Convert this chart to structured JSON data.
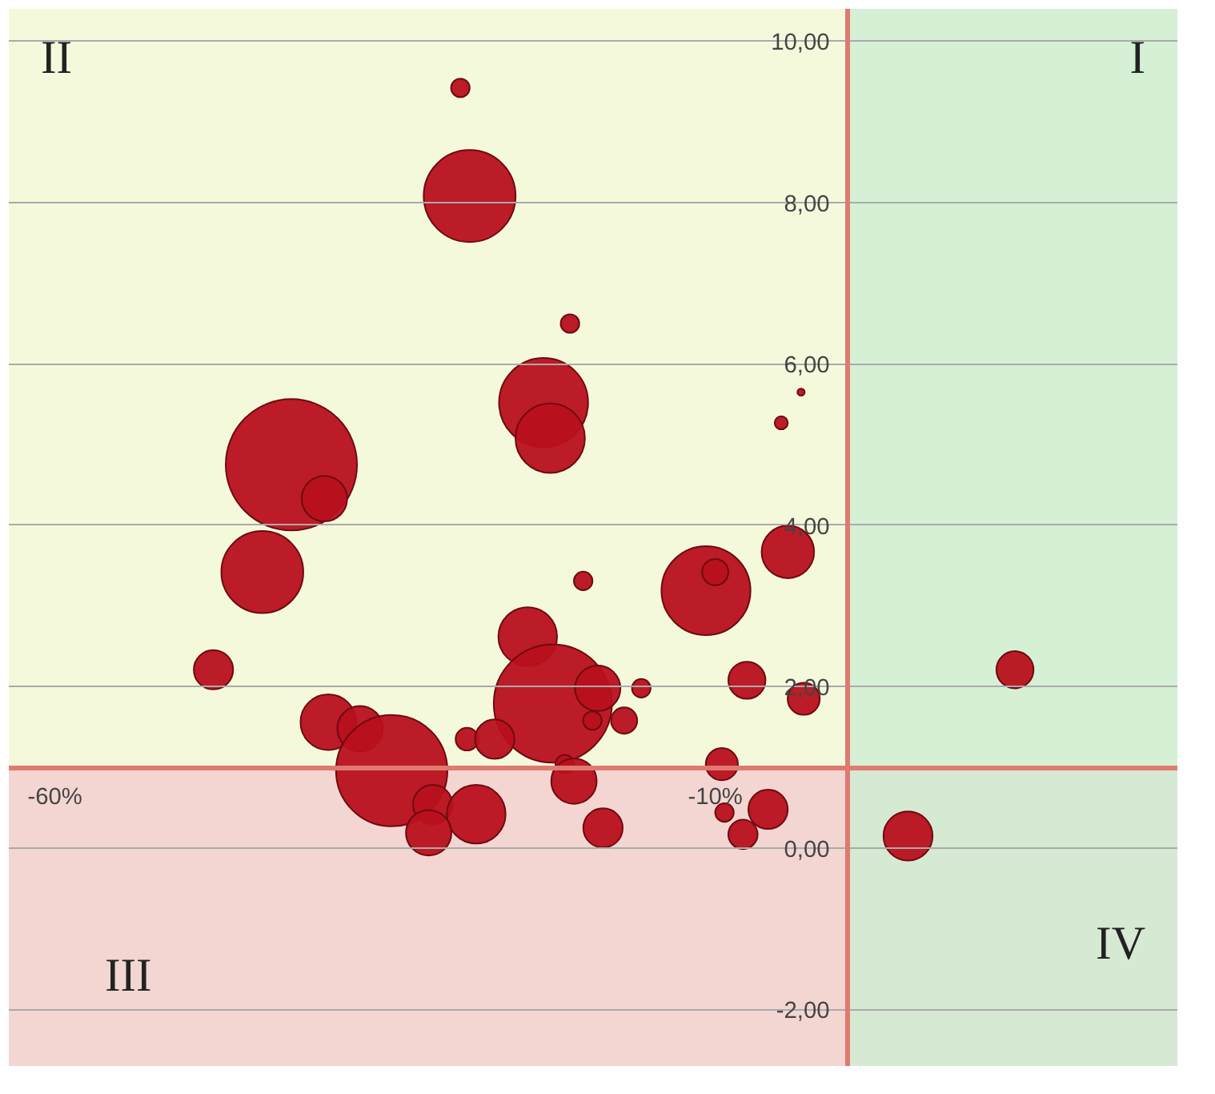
{
  "chart_data": {
    "type": "bubble",
    "color": "#b8101c",
    "grid": "y",
    "marker": "circle",
    "xlim": [
      -63.5,
      25
    ],
    "ylim": [
      -2.7,
      10.4
    ],
    "xticks": [
      {
        "value": -60,
        "label": "-60%"
      },
      {
        "value": -10,
        "label": "-10%"
      }
    ],
    "yticks": [
      {
        "value": -2,
        "label": "-2,00"
      },
      {
        "value": 0,
        "label": "0,00"
      },
      {
        "value": 2,
        "label": "2,00"
      },
      {
        "value": 4,
        "label": "4,00"
      },
      {
        "value": 6,
        "label": "6,00"
      },
      {
        "value": 8,
        "label": "8,00"
      },
      {
        "value": 10,
        "label": "10,00"
      }
    ],
    "annotations": [
      "I",
      "II",
      "III",
      "IV"
    ],
    "bands": [
      {
        "axis": "y",
        "from": 1,
        "to": 10.4,
        "color": "#f4f8d8"
      },
      {
        "axis": "y",
        "from": -2.7,
        "to": 1,
        "color": "#f2d2cc"
      },
      {
        "axis": "x",
        "from": 0,
        "to": 25,
        "color": "#cdeed3"
      }
    ],
    "x": [
      -29.3,
      -28.6,
      -21.0,
      -3.5,
      -5.0,
      -23.0,
      -22.5,
      -42.1,
      -39.6,
      -44.3,
      -20.0,
      -10.7,
      -10.0,
      -4.5,
      -24.2,
      -48.0,
      -22.3,
      -18.9,
      -15.6,
      -7.6,
      -3.3,
      -19.3,
      -16.9,
      12.7,
      -39.3,
      -36.9,
      -28.8,
      -26.7,
      -34.5,
      -21.4,
      -20.7,
      -9.5,
      -31.4,
      -28.1,
      -31.7,
      -18.5,
      -9.3,
      -7.9,
      -6.0,
      4.6
    ],
    "values": [
      9.42,
      8.08,
      6.5,
      5.65,
      5.27,
      5.52,
      5.08,
      4.75,
      4.33,
      3.42,
      3.31,
      3.19,
      3.42,
      3.67,
      2.62,
      2.21,
      1.79,
      1.98,
      1.98,
      2.08,
      1.85,
      1.58,
      1.58,
      2.21,
      1.56,
      1.48,
      1.35,
      1.35,
      0.96,
      1.04,
      0.83,
      1.04,
      0.54,
      0.42,
      0.19,
      0.25,
      0.44,
      0.17,
      0.48,
      0.15
    ],
    "sizes": [
      0.02,
      0.49,
      0.02,
      0.003,
      0.01,
      0.46,
      0.28,
      1,
      0.12,
      0.39,
      0.02,
      0.46,
      0.04,
      0.16,
      0.2,
      0.09,
      0.81,
      0.12,
      0.02,
      0.08,
      0.06,
      0.02,
      0.04,
      0.08,
      0.18,
      0.12,
      0.03,
      0.09,
      0.72,
      0.02,
      0.12,
      0.06,
      0.09,
      0.2,
      0.12,
      0.09,
      0.02,
      0.05,
      0.09,
      0.14
    ]
  }
}
